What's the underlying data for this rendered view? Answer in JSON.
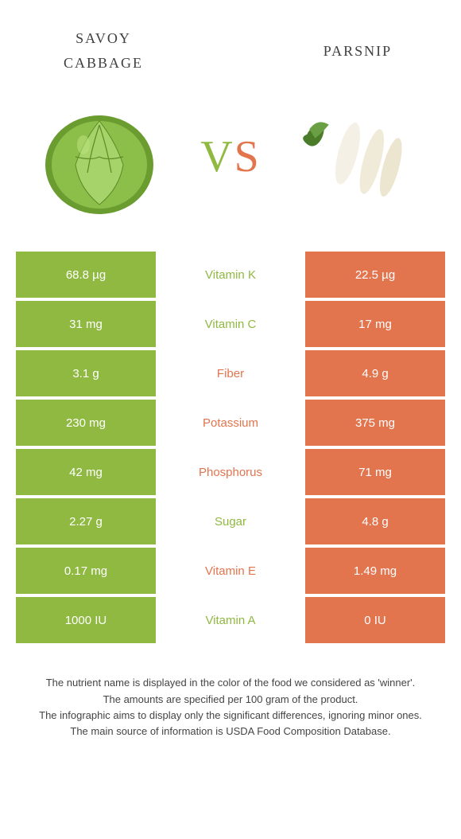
{
  "colors": {
    "left": "#8fb940",
    "right": "#e2744e",
    "background": "#ffffff",
    "row_border": "#ffffff",
    "cell_text": "#ffffff",
    "title_text": "#404040",
    "footer_text": "#444444"
  },
  "typography": {
    "title_fontsize": 26,
    "vs_fontsize": 56,
    "cell_fontsize": 15,
    "footer_fontsize": 13
  },
  "foods": {
    "left": {
      "name_line1": "savoy",
      "name_line2": "cabbage"
    },
    "right": {
      "name_line1": "parsnip",
      "name_line2": ""
    }
  },
  "vs": {
    "v": "V",
    "s": "S"
  },
  "table": {
    "type": "comparison-table",
    "rows": [
      {
        "left": "68.8 µg",
        "label": "Vitamin K",
        "right": "22.5 µg",
        "winner": "left"
      },
      {
        "left": "31 mg",
        "label": "Vitamin C",
        "right": "17 mg",
        "winner": "left"
      },
      {
        "left": "3.1 g",
        "label": "Fiber",
        "right": "4.9 g",
        "winner": "right"
      },
      {
        "left": "230 mg",
        "label": "Potassium",
        "right": "375 mg",
        "winner": "right"
      },
      {
        "left": "42 mg",
        "label": "Phosphorus",
        "right": "71 mg",
        "winner": "right"
      },
      {
        "left": "2.27 g",
        "label": "Sugar",
        "right": "4.8 g",
        "winner": "left"
      },
      {
        "left": "0.17 mg",
        "label": "Vitamin E",
        "right": "1.49 mg",
        "winner": "right"
      },
      {
        "left": "1000 IU",
        "label": "Vitamin A",
        "right": "0 IU",
        "winner": "left"
      }
    ]
  },
  "footer": {
    "l1": "The nutrient name is displayed in the color of the food we considered as 'winner'.",
    "l2": "The amounts are specified per 100 gram of the product.",
    "l3": "The infographic aims to display only the significant differences, ignoring minor ones.",
    "l4": "The main source of information is USDA Food Composition Database."
  }
}
